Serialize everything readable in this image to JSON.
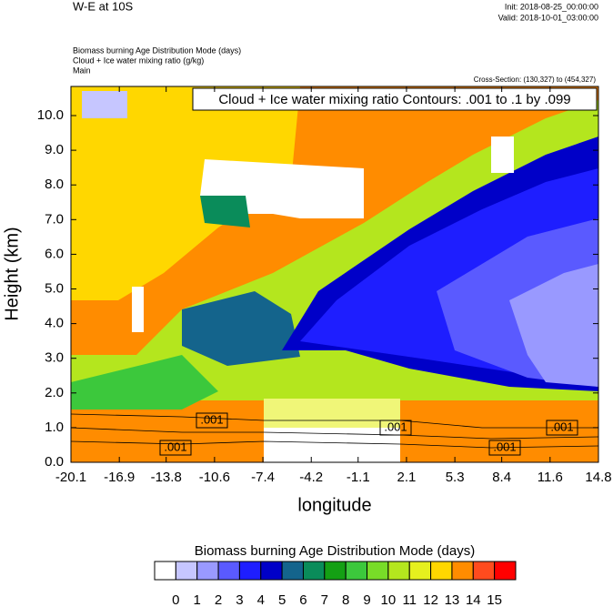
{
  "chart_data": {
    "type": "contour",
    "title": "W-E at 10S",
    "init": "Init: 2018-08-25_00:00:00",
    "valid": "Valid: 2018-10-01_03:00:00",
    "field_titles": [
      "Biomass burning Age Distribution Mode   (days)",
      "Cloud + Ice water mixing ratio   (g/kg)",
      "Main"
    ],
    "cross_section": "Cross-Section: (130,327) to (454,327)",
    "contour_info": "Cloud + Ice water mixing ratio Contours: .001 to .1 by .099",
    "contour_labels": [
      ".001",
      ".001",
      ".001",
      ".001",
      ".001"
    ],
    "x_label": "longitude",
    "y_label": "Height (km)",
    "xlim": [
      -20.1,
      14.8
    ],
    "xticks": [
      -20.1,
      -16.9,
      -13.8,
      -10.6,
      -7.4,
      -4.2,
      -1.1,
      2.1,
      5.3,
      8.4,
      11.6,
      14.8
    ],
    "ylim": [
      0,
      10.84
    ],
    "yticks": [
      {
        "value": 0,
        "label": "0.0"
      },
      {
        "value": 1,
        "label": "1.0"
      },
      {
        "value": 2,
        "label": "2.0"
      },
      {
        "value": 3,
        "label": "3.0"
      },
      {
        "value": 4,
        "label": "4.0"
      },
      {
        "value": 5,
        "label": "5.0"
      },
      {
        "value": 6,
        "label": "6.0"
      },
      {
        "value": 7,
        "label": "7.0"
      },
      {
        "value": 8,
        "label": "8.0"
      },
      {
        "value": 9,
        "label": "9.0"
      },
      {
        "value": 10,
        "label": "10.0"
      }
    ],
    "colorbar": {
      "title": "Biomass burning Age Distribution Mode  (days)",
      "levels": [
        0,
        1,
        2,
        3,
        4,
        5,
        6,
        7,
        8,
        9,
        10,
        11,
        12,
        13,
        14,
        15
      ],
      "colors": [
        "#ffffff",
        "#c6c6ff",
        "#9999ff",
        "#5a5aff",
        "#1e1eff",
        "#0000c8",
        "#14648c",
        "#0a8c5a",
        "#14a014",
        "#3cc83c",
        "#78dc28",
        "#b4e61e",
        "#e6f01e",
        "#ffd700",
        "#ff8c00",
        "#ff4b1e",
        "#ff0000"
      ]
    }
  }
}
